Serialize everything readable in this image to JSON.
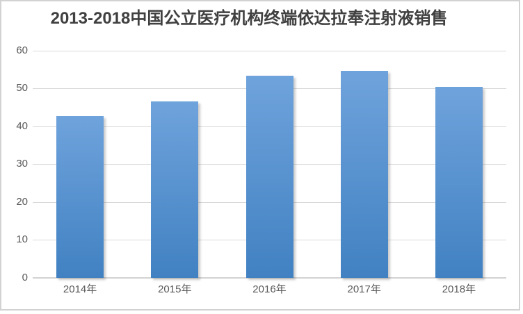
{
  "chart_data": {
    "type": "bar",
    "title": "2013-2018中国公立医疗机构终端依达拉奉注射液销售",
    "categories": [
      "2014年",
      "2015年",
      "2016年",
      "2017年",
      "2018年"
    ],
    "values": [
      42.6,
      46.6,
      53.3,
      54.6,
      50.4
    ],
    "xlabel": "",
    "ylabel": "",
    "ylim": [
      0,
      60
    ],
    "yticks": [
      0,
      10,
      20,
      30,
      40,
      50,
      60
    ],
    "grid": true,
    "legend": "none",
    "colors": {
      "bar_gradient_top": "#6FA3DC",
      "bar_gradient_bottom": "#4181C2",
      "gridline": "#D9D9D9",
      "axis_line": "#D2D2D2",
      "axis_label": "#595959",
      "title": "#404040"
    }
  }
}
